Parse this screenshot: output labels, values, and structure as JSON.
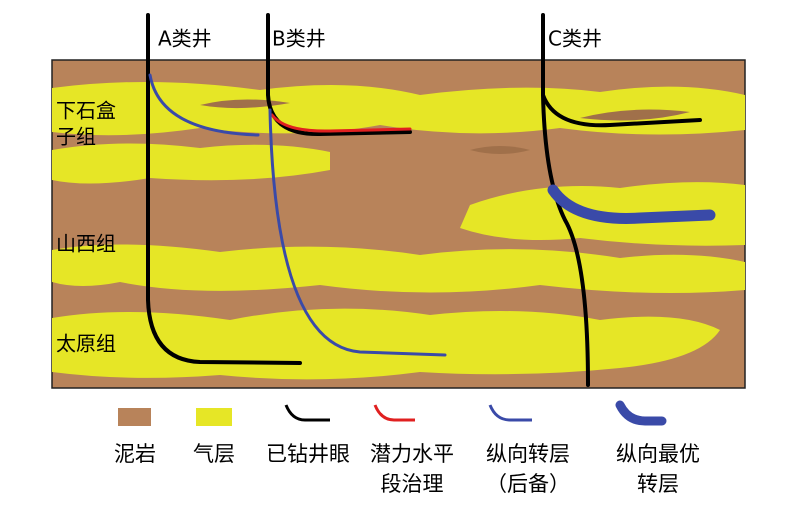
{
  "wells": [
    {
      "label": "A类井"
    },
    {
      "label": "B类井"
    },
    {
      "label": "C类井"
    }
  ],
  "formations": [
    {
      "lines": [
        "下石盒",
        "子组"
      ]
    },
    {
      "lines": [
        "山西组"
      ]
    },
    {
      "lines": [
        "太原组"
      ]
    }
  ],
  "legend": [
    {
      "lines": [
        "泥岩"
      ]
    },
    {
      "lines": [
        "气层"
      ]
    },
    {
      "lines": [
        "已钻井眼"
      ]
    },
    {
      "lines": [
        "潜力水平",
        "段治理"
      ]
    },
    {
      "lines": [
        "纵向转层",
        "（后备）"
      ]
    },
    {
      "lines": [
        "纵向最优",
        "转层"
      ]
    }
  ]
}
